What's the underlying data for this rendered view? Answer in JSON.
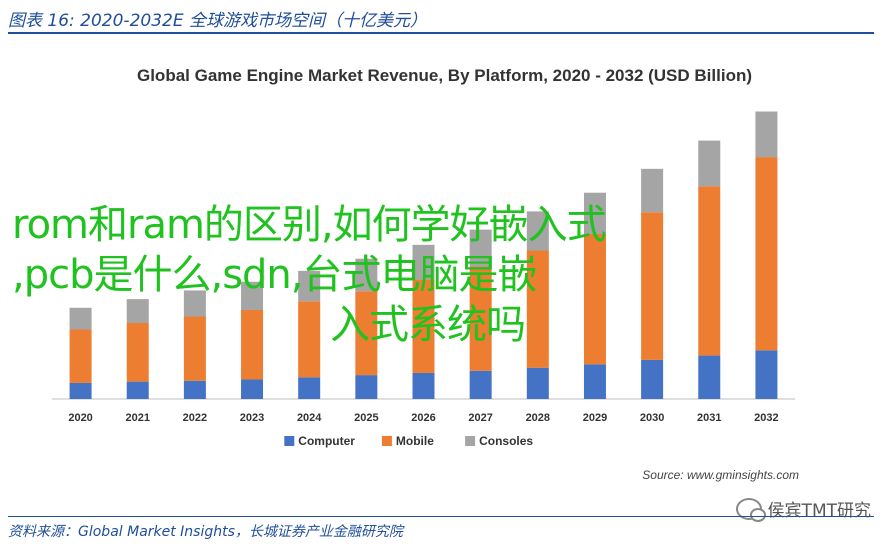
{
  "figure": {
    "caption": "图表 16:  2020-2032E 全球游戏市场空间（十亿美元）",
    "footer": "资料来源：Global Market Insights，长城证券产业金融研究院",
    "watermark": "侯宾TMT研究"
  },
  "overlay": {
    "line1": "rom和ram的区别,如何学好嵌入式",
    "line2": ",pcb是什么,sdn,台式电脑是嵌",
    "line3": "入式系统吗"
  },
  "chart_data": {
    "type": "bar",
    "stacked": true,
    "title": "Global Game Engine Market Revenue, By Platform, 2020 - 2032 (USD Billion)",
    "source": "Source: www.gminsights.com",
    "categories": [
      "2020",
      "2021",
      "2022",
      "2023",
      "2024",
      "2025",
      "2026",
      "2027",
      "2028",
      "2029",
      "2030",
      "2031",
      "2032"
    ],
    "series": [
      {
        "name": "Computer",
        "color": "#4472c4",
        "values": [
          0.37,
          0.4,
          0.42,
          0.45,
          0.5,
          0.55,
          0.6,
          0.65,
          0.72,
          0.8,
          0.9,
          1.0,
          1.12
        ]
      },
      {
        "name": "Mobile",
        "color": "#ed7d31",
        "values": [
          1.23,
          1.35,
          1.48,
          1.6,
          1.75,
          1.93,
          2.15,
          2.4,
          2.7,
          3.0,
          3.4,
          3.9,
          4.45
        ]
      },
      {
        "name": "Consoles",
        "color": "#a5a5a5",
        "values": [
          0.5,
          0.55,
          0.6,
          0.65,
          0.7,
          0.75,
          0.8,
          0.85,
          0.9,
          0.95,
          1.0,
          1.05,
          1.05
        ]
      }
    ],
    "ylim": [
      0,
      7
    ],
    "legend": "bottom"
  }
}
